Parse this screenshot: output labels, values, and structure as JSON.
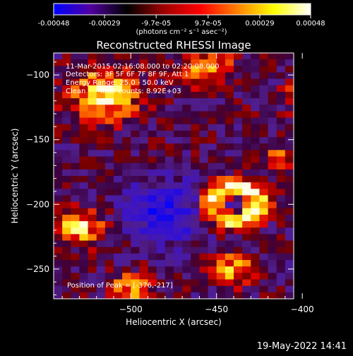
{
  "colorbar": {
    "ticks": [
      "-0.00048",
      "-0.00029",
      "-9.7e-05",
      "9.7e-05",
      "0.00029",
      "0.00048"
    ],
    "tick_values": [
      -0.00048,
      -0.00029,
      -9.7e-05,
      9.7e-05,
      0.00029,
      0.00048
    ],
    "range": [
      -0.00048,
      0.00048
    ],
    "unit_label": "(photons cm⁻² s⁻¹ asec⁻²)",
    "stops": [
      "#0000ff",
      "#5000a0",
      "#000000",
      "#a00000",
      "#ff0000",
      "#ff8000",
      "#ffff00",
      "#ffffff"
    ]
  },
  "chart_data": {
    "type": "heatmap",
    "title": "Reconstructed RHESSI Image",
    "xlabel": "Heliocentric X (arcsec)",
    "ylabel": "Heliocentric Y (arcsec)",
    "xlim": [
      -545,
      -405
    ],
    "ylim": [
      -273,
      -83
    ],
    "xticks": [
      -500,
      -450,
      -400
    ],
    "yticks": [
      -100,
      -150,
      -200,
      -250
    ],
    "annotations": {
      "time": "11-Mar-2015 02:16:08.000 to 02:20:08.000",
      "detectors": "Detectors: 3F 5F 6F 7F 8F 9F, Att 1",
      "energy": "Energy Range: 25.0 - 50.0 keV",
      "algorithm": "Clean      Total counts: 8.92E+03",
      "peak": "Position of Peak = [-376,-217]"
    },
    "peak_position": [
      -376,
      -217
    ],
    "sources": [
      {
        "x": -440,
        "y": -200,
        "r": 22,
        "kind": "ring",
        "level": 1.0
      },
      {
        "x": -515,
        "y": -115,
        "r": 20,
        "kind": "blob",
        "level": 0.9
      },
      {
        "x": -455,
        "y": -95,
        "r": 15,
        "kind": "blob",
        "level": 0.7
      },
      {
        "x": -400,
        "y": -118,
        "r": 10,
        "kind": "blob",
        "level": 0.7
      },
      {
        "x": -376,
        "y": -217,
        "r": 14,
        "kind": "blob",
        "level": 1.0
      },
      {
        "x": -530,
        "y": -217,
        "r": 14,
        "kind": "blob",
        "level": 0.85
      },
      {
        "x": -500,
        "y": -265,
        "r": 12,
        "kind": "blob",
        "level": 0.7
      },
      {
        "x": -440,
        "y": -250,
        "r": 12,
        "kind": "blob",
        "level": 0.75
      },
      {
        "x": -413,
        "y": -165,
        "r": 10,
        "kind": "blob",
        "level": 0.6
      },
      {
        "x": -480,
        "y": -205,
        "r": 24,
        "kind": "void",
        "level": -0.7
      },
      {
        "x": -390,
        "y": -255,
        "r": 14,
        "kind": "void",
        "level": -0.5
      }
    ]
  },
  "footer": {
    "date": "19-May-2022 14:41"
  }
}
